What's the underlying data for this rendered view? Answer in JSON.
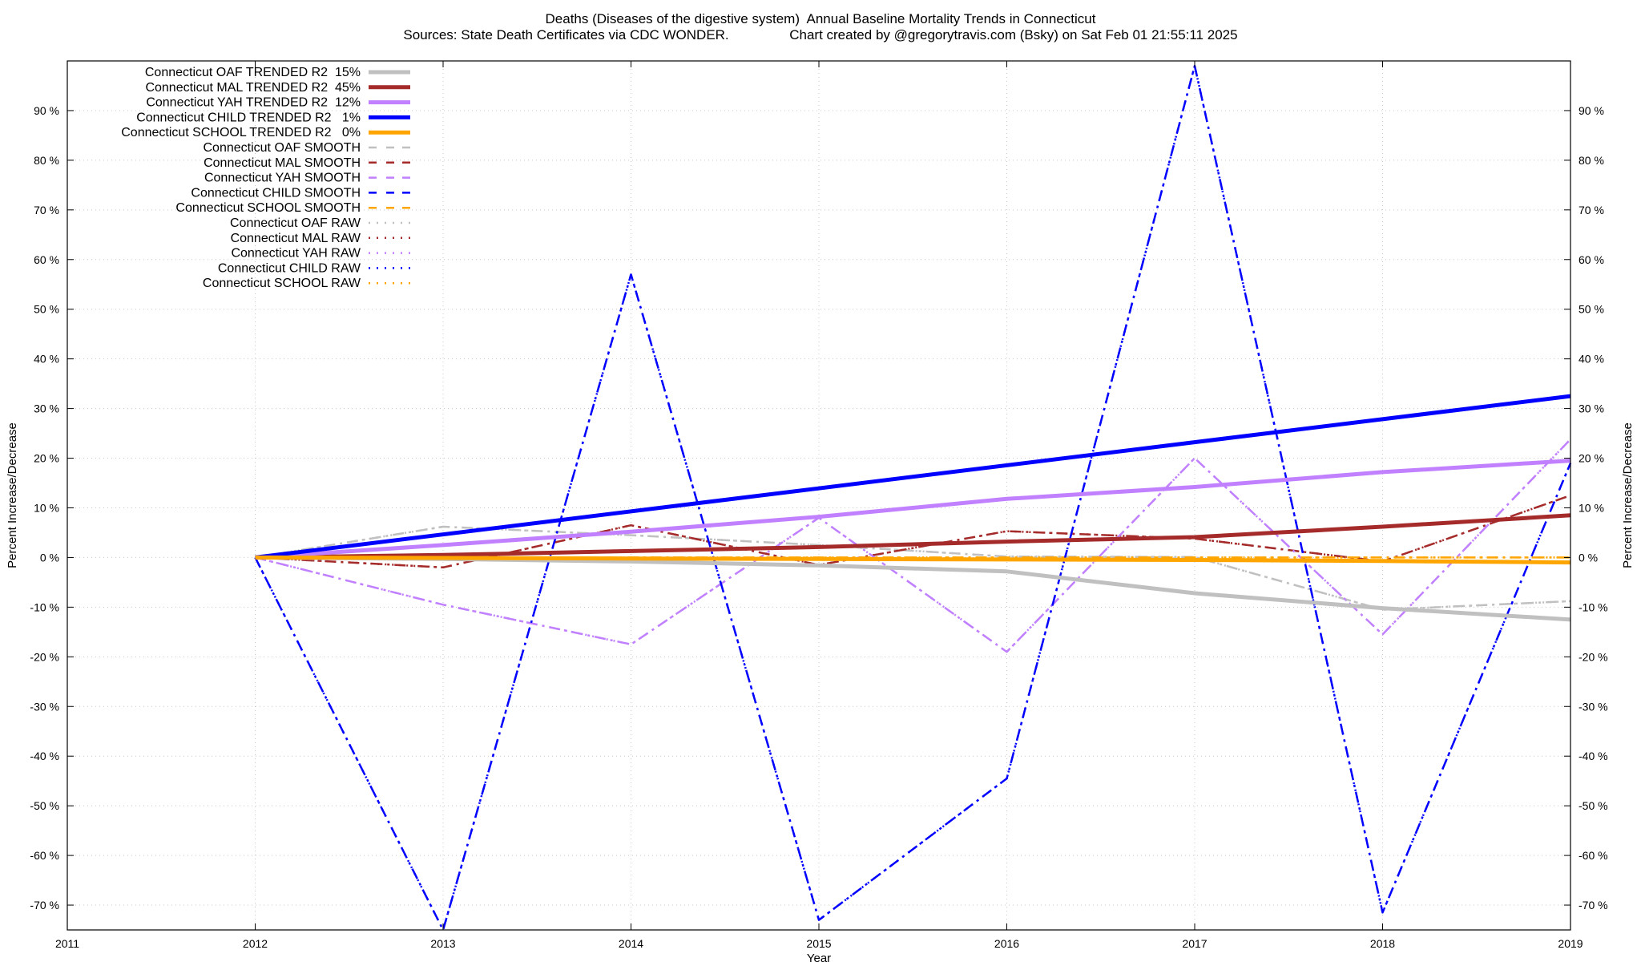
{
  "title_line1": "Deaths (Diseases of the digestive system)  Annual Baseline Mortality Trends in Connecticut",
  "title_line2": "Sources: State Death Certificates via CDC WONDER.                Chart created by @gregorytravis.com (Bsky) on Sat Feb 01 21:55:11 2025",
  "chart_data": {
    "type": "line",
    "xlabel": "Year",
    "ylabel": "Percent Increase/Decrease",
    "y2label": "Percent Increase/Decrease",
    "xlim": [
      2011,
      2019
    ],
    "ylim": [
      -75,
      100
    ],
    "xticks": [
      "2011",
      "2012",
      "2013",
      "2014",
      "2015",
      "2016",
      "2017",
      "2018",
      "2019"
    ],
    "yticks": [
      "-70 %",
      "-60 %",
      "-50 %",
      "-40 %",
      "-30 %",
      "-20 %",
      "-10 %",
      "0 %",
      "10 %",
      "20 %",
      "30 %",
      "40 %",
      "50 %",
      "60 %",
      "70 %",
      "80 %",
      "90 %"
    ],
    "grid": true,
    "legend_position": "top-left",
    "series": [
      {
        "name": "Connecticut OAF TRENDED R2  15%",
        "style": "trended",
        "color": "#c0c0c0",
        "x": [
          2012,
          2013,
          2014,
          2015,
          2016,
          2017,
          2018,
          2019
        ],
        "y": [
          0,
          -0.3,
          -0.8,
          -1.6,
          -2.8,
          -7.2,
          -10.2,
          -12.5
        ]
      },
      {
        "name": "Connecticut MAL TRENDED R2  45%",
        "style": "trended",
        "color": "#a52a2a",
        "x": [
          2012,
          2013,
          2014,
          2015,
          2016,
          2017,
          2018,
          2019
        ],
        "y": [
          0,
          0.5,
          1.3,
          2.1,
          3.2,
          4.1,
          6.2,
          8.5
        ]
      },
      {
        "name": "Connecticut YAH TRENDED R2  12%",
        "style": "trended",
        "color": "#c080ff",
        "x": [
          2012,
          2013,
          2014,
          2015,
          2016,
          2017,
          2018,
          2019
        ],
        "y": [
          0,
          2.5,
          5.2,
          8.2,
          11.8,
          14.2,
          17.2,
          19.5
        ]
      },
      {
        "name": "Connecticut CHILD TRENDED R2   1%",
        "style": "trended",
        "color": "#0000ff",
        "x": [
          2012,
          2019
        ],
        "y": [
          0,
          32.5
        ]
      },
      {
        "name": "Connecticut SCHOOL TRENDED R2   0%",
        "style": "trended",
        "color": "#ffa500",
        "x": [
          2012,
          2013,
          2014,
          2015,
          2016,
          2017,
          2018,
          2019
        ],
        "y": [
          0,
          -0.1,
          -0.2,
          -0.3,
          -0.4,
          -0.5,
          -0.7,
          -1.0
        ]
      },
      {
        "name": "Connecticut OAF SMOOTH",
        "style": "smooth",
        "color": "#c0c0c0",
        "x": [
          2012,
          2013,
          2014,
          2015,
          2016,
          2017,
          2018,
          2019
        ],
        "y": [
          0,
          6.2,
          4.5,
          2.5,
          0.2,
          0.1,
          -10.5,
          -8.8
        ]
      },
      {
        "name": "Connecticut MAL SMOOTH",
        "style": "smooth",
        "color": "#a52a2a",
        "x": [
          2012,
          2013,
          2014,
          2015,
          2016,
          2017,
          2018,
          2019
        ],
        "y": [
          0,
          -2.0,
          6.5,
          -1.5,
          5.3,
          3.8,
          -0.8,
          12.5
        ]
      },
      {
        "name": "Connecticut YAH SMOOTH",
        "style": "smooth",
        "color": "#c080ff",
        "x": [
          2012,
          2013,
          2014,
          2015,
          2016,
          2017,
          2018,
          2019
        ],
        "y": [
          0,
          -9.5,
          -17.5,
          8.0,
          -19.0,
          20.0,
          -15.5,
          23.8
        ]
      },
      {
        "name": "Connecticut CHILD SMOOTH",
        "style": "smooth",
        "color": "#0000ff",
        "x": [
          2012,
          2013,
          2014,
          2015,
          2016,
          2017,
          2018,
          2019
        ],
        "y": [
          0,
          -75.0,
          57.0,
          -73.0,
          -44.5,
          99.0,
          -71.5,
          19.0
        ]
      },
      {
        "name": "Connecticut SCHOOL SMOOTH",
        "style": "smooth",
        "color": "#ffa500",
        "x": [
          2012,
          2013,
          2014,
          2015,
          2016,
          2017,
          2018,
          2019
        ],
        "y": [
          0,
          0,
          0,
          0,
          0,
          0,
          0,
          0
        ]
      },
      {
        "name": "Connecticut OAF RAW",
        "style": "raw",
        "color": "#c0c0c0",
        "x": [
          2012,
          2013,
          2014,
          2015,
          2016,
          2017,
          2018,
          2019
        ],
        "y": [
          0,
          6.2,
          4.5,
          2.5,
          0.2,
          0.1,
          -10.5,
          -8.8
        ]
      },
      {
        "name": "Connecticut MAL RAW",
        "style": "raw",
        "color": "#a52a2a",
        "x": [
          2012,
          2013,
          2014,
          2015,
          2016,
          2017,
          2018,
          2019
        ],
        "y": [
          0,
          -2.0,
          6.5,
          -1.5,
          5.3,
          3.8,
          -0.8,
          12.5
        ]
      },
      {
        "name": "Connecticut YAH RAW",
        "style": "raw",
        "color": "#c080ff",
        "x": [
          2012,
          2013,
          2014,
          2015,
          2016,
          2017,
          2018,
          2019
        ],
        "y": [
          0,
          -9.5,
          -17.5,
          8.0,
          -19.0,
          20.0,
          -15.5,
          23.8
        ]
      },
      {
        "name": "Connecticut CHILD RAW",
        "style": "raw",
        "color": "#0000ff",
        "x": [
          2012,
          2013,
          2014,
          2015,
          2016,
          2017,
          2018,
          2019
        ],
        "y": [
          0,
          -75.0,
          57.0,
          -73.0,
          -44.5,
          99.0,
          -71.5,
          19.0
        ]
      },
      {
        "name": "Connecticut SCHOOL RAW",
        "style": "raw",
        "color": "#ffa500",
        "x": [
          2012,
          2013,
          2014,
          2015,
          2016,
          2017,
          2018,
          2019
        ],
        "y": [
          0,
          0,
          0,
          0,
          0,
          0,
          0,
          0
        ]
      }
    ]
  }
}
